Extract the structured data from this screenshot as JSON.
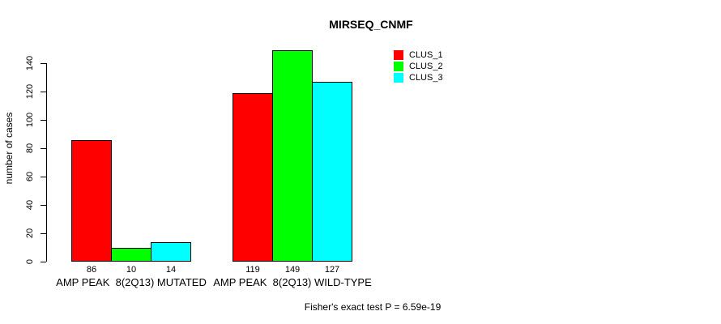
{
  "title": "MIRSEQ_CNMF",
  "chart_data": {
    "type": "bar",
    "title": "MIRSEQ_CNMF",
    "xlabel": "",
    "ylabel": "number of cases",
    "ylim": [
      0,
      150
    ],
    "yticks": [
      0,
      20,
      40,
      60,
      80,
      100,
      120,
      140
    ],
    "grid": false,
    "legend_position": "top-right",
    "categories": [
      "AMP PEAK  8(2Q13) MUTATED",
      "AMP PEAK  8(2Q13) WILD-TYPE"
    ],
    "series": [
      {
        "name": "CLUS_1",
        "color": "#ff0000",
        "values": [
          86,
          119
        ]
      },
      {
        "name": "CLUS_2",
        "color": "#00ff00",
        "values": [
          10,
          149
        ]
      },
      {
        "name": "CLUS_3",
        "color": "#00ffff",
        "values": [
          14,
          127
        ]
      }
    ],
    "bar_value_labels": [
      [
        "86",
        "10",
        "14"
      ],
      [
        "119",
        "149",
        "127"
      ]
    ],
    "annotation": "Fisher's exact test P = 6.59e-19"
  },
  "colors": {
    "background": "#ffffff",
    "axis": "#000000",
    "text": "#000000"
  }
}
